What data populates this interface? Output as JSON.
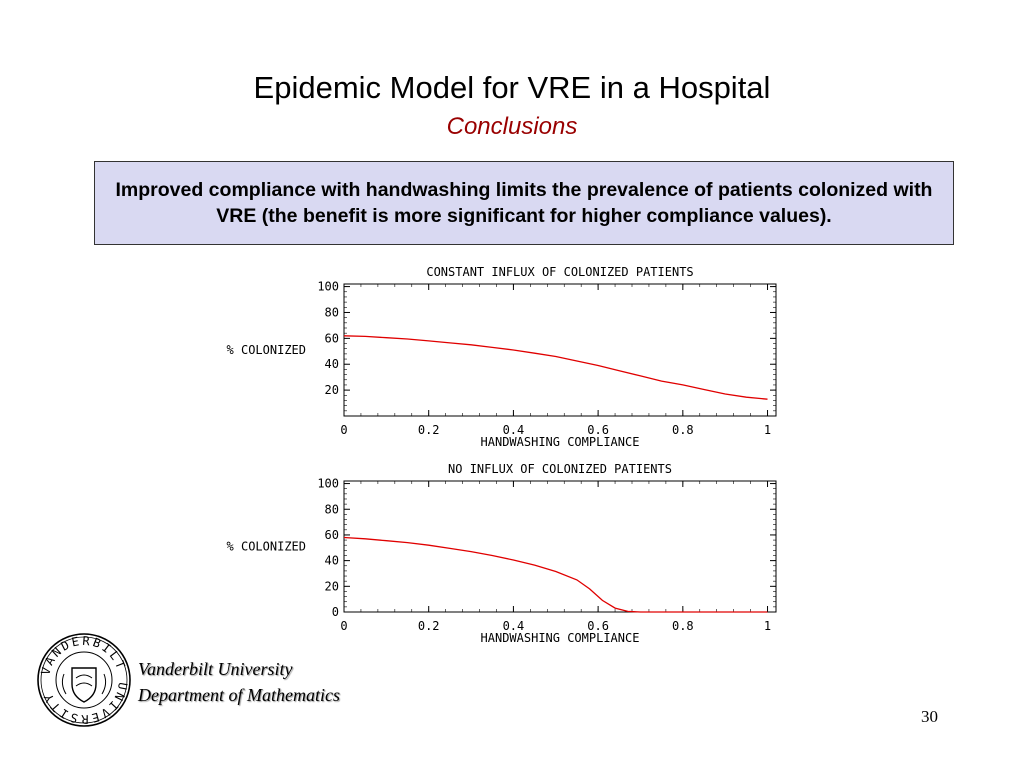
{
  "slide": {
    "title": "Epidemic Model for VRE in a Hospital",
    "subtitle": "Conclusions",
    "callout": "Improved compliance with handwashing limits the prevalence of patients colonized with VRE (the benefit is more significant for higher compliance values).",
    "footer_line1": "Vanderbilt University",
    "footer_line2": "Department of Mathematics",
    "page_number": "30",
    "seal_text": "VANDERBILT UNIVERSITY"
  },
  "colors": {
    "curve": "#e00000",
    "subtitle": "#990000",
    "callout_bg": "#d9d9f2"
  },
  "chart_data": [
    {
      "type": "line",
      "title": "CONSTANT INFLUX OF COLONIZED PATIENTS",
      "xlabel": "HANDWASHING COMPLIANCE",
      "ylabel": "% COLONIZED",
      "xlim": [
        0,
        1.02
      ],
      "ylim": [
        0,
        102
      ],
      "xticks": [
        0,
        0.2,
        0.4,
        0.6,
        0.8,
        1
      ],
      "xtick_labels": [
        "0",
        "0.2",
        "0.4",
        "0.6",
        "0.8",
        "1"
      ],
      "yticks": [
        20,
        40,
        60,
        80,
        100
      ],
      "ytick_labels": [
        "20",
        "40",
        "60",
        "80",
        "100"
      ],
      "series": [
        {
          "x": [
            0,
            0.05,
            0.1,
            0.15,
            0.2,
            0.25,
            0.3,
            0.35,
            0.4,
            0.45,
            0.5,
            0.55,
            0.6,
            0.65,
            0.7,
            0.75,
            0.8,
            0.85,
            0.9,
            0.95,
            1.0
          ],
          "y": [
            62,
            61.5,
            60.5,
            59.5,
            58,
            56.5,
            55,
            53,
            51,
            48.5,
            46,
            42.5,
            39,
            35,
            31,
            27,
            24,
            20.5,
            17,
            14.5,
            13
          ]
        }
      ]
    },
    {
      "type": "line",
      "title": "NO INFLUX OF COLONIZED PATIENTS",
      "xlabel": "HANDWASHING COMPLIANCE",
      "ylabel": "% COLONIZED",
      "xlim": [
        0,
        1.02
      ],
      "ylim": [
        0,
        102
      ],
      "xticks": [
        0,
        0.2,
        0.4,
        0.6,
        0.8,
        1
      ],
      "xtick_labels": [
        "0",
        "0.2",
        "0.4",
        "0.6",
        "0.8",
        "1"
      ],
      "yticks": [
        0,
        20,
        40,
        60,
        80,
        100
      ],
      "ytick_labels": [
        "0",
        "20",
        "40",
        "60",
        "80",
        "100"
      ],
      "series": [
        {
          "x": [
            0,
            0.05,
            0.1,
            0.15,
            0.2,
            0.25,
            0.3,
            0.35,
            0.4,
            0.45,
            0.5,
            0.55,
            0.58,
            0.61,
            0.64,
            0.67,
            0.7,
            0.8,
            0.9,
            1.0
          ],
          "y": [
            58,
            57,
            55.5,
            54,
            52,
            49.5,
            47,
            44,
            40.5,
            36.5,
            31.5,
            25,
            18,
            9,
            3,
            0.5,
            0,
            0,
            0,
            0
          ]
        }
      ]
    }
  ]
}
